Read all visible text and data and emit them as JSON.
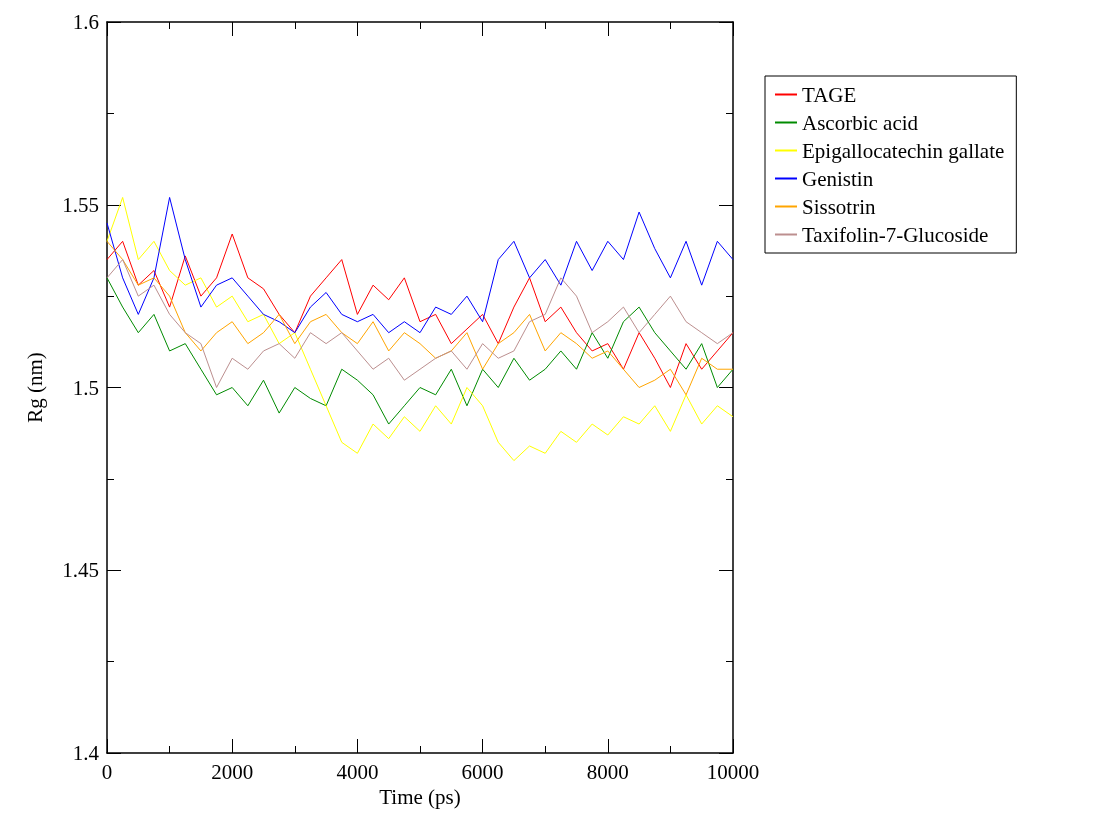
{
  "chart_data": {
    "type": "line",
    "xlabel": "Time (ps)",
    "ylabel": "Rg (nm)",
    "x": [
      0,
      250,
      500,
      750,
      1000,
      1250,
      1500,
      1750,
      2000,
      2250,
      2500,
      2750,
      3000,
      3250,
      3500,
      3750,
      4000,
      4250,
      4500,
      4750,
      5000,
      5250,
      5500,
      5750,
      6000,
      6250,
      6500,
      6750,
      7000,
      7250,
      7500,
      7750,
      8000,
      8250,
      8500,
      8750,
      9000,
      9250,
      9500,
      9750,
      10000
    ],
    "series": [
      {
        "name": "TAGE",
        "color": "#ff0000",
        "values": [
          1.535,
          1.54,
          1.528,
          1.532,
          1.522,
          1.536,
          1.525,
          1.53,
          1.542,
          1.53,
          1.527,
          1.52,
          1.515,
          1.525,
          1.53,
          1.535,
          1.52,
          1.528,
          1.524,
          1.53,
          1.518,
          1.52,
          1.512,
          1.516,
          1.52,
          1.512,
          1.522,
          1.53,
          1.518,
          1.522,
          1.515,
          1.51,
          1.512,
          1.505,
          1.515,
          1.508,
          1.5,
          1.512,
          1.505,
          1.51,
          1.515
        ]
      },
      {
        "name": "Ascorbic acid",
        "color": "#008b00",
        "values": [
          1.53,
          1.522,
          1.515,
          1.52,
          1.51,
          1.512,
          1.505,
          1.498,
          1.5,
          1.495,
          1.502,
          1.493,
          1.5,
          1.497,
          1.495,
          1.505,
          1.502,
          1.498,
          1.49,
          1.495,
          1.5,
          1.498,
          1.505,
          1.495,
          1.505,
          1.5,
          1.508,
          1.502,
          1.505,
          1.51,
          1.505,
          1.515,
          1.508,
          1.518,
          1.522,
          1.515,
          1.51,
          1.505,
          1.512,
          1.5,
          1.505
        ]
      },
      {
        "name": "Epigallocatechin gallate",
        "color": "#ffff00",
        "values": [
          1.54,
          1.552,
          1.535,
          1.54,
          1.532,
          1.528,
          1.53,
          1.522,
          1.525,
          1.518,
          1.52,
          1.512,
          1.515,
          1.505,
          1.495,
          1.485,
          1.482,
          1.49,
          1.486,
          1.492,
          1.488,
          1.495,
          1.49,
          1.5,
          1.495,
          1.485,
          1.48,
          1.484,
          1.482,
          1.488,
          1.485,
          1.49,
          1.487,
          1.492,
          1.49,
          1.495,
          1.488,
          1.498,
          1.49,
          1.495,
          1.492
        ]
      },
      {
        "name": "Genistin",
        "color": "#0000ff",
        "values": [
          1.545,
          1.53,
          1.52,
          1.53,
          1.552,
          1.535,
          1.522,
          1.528,
          1.53,
          1.525,
          1.52,
          1.518,
          1.515,
          1.522,
          1.526,
          1.52,
          1.518,
          1.52,
          1.515,
          1.518,
          1.515,
          1.522,
          1.52,
          1.525,
          1.518,
          1.535,
          1.54,
          1.53,
          1.535,
          1.528,
          1.54,
          1.532,
          1.54,
          1.535,
          1.548,
          1.538,
          1.53,
          1.54,
          1.528,
          1.54,
          1.535
        ]
      },
      {
        "name": "Sissotrin",
        "color": "#ffa500",
        "values": [
          1.54,
          1.535,
          1.528,
          1.53,
          1.525,
          1.515,
          1.51,
          1.515,
          1.518,
          1.512,
          1.515,
          1.52,
          1.512,
          1.518,
          1.52,
          1.515,
          1.512,
          1.518,
          1.51,
          1.515,
          1.512,
          1.508,
          1.51,
          1.515,
          1.505,
          1.512,
          1.515,
          1.52,
          1.51,
          1.515,
          1.512,
          1.508,
          1.51,
          1.505,
          1.5,
          1.502,
          1.505,
          1.498,
          1.508,
          1.505,
          1.505
        ]
      },
      {
        "name": "Taxifolin-7-Glucoside",
        "color": "#bc8f8f",
        "values": [
          1.53,
          1.535,
          1.525,
          1.528,
          1.52,
          1.515,
          1.512,
          1.5,
          1.508,
          1.505,
          1.51,
          1.512,
          1.508,
          1.515,
          1.512,
          1.515,
          1.51,
          1.505,
          1.508,
          1.502,
          1.505,
          1.508,
          1.51,
          1.505,
          1.512,
          1.508,
          1.51,
          1.518,
          1.52,
          1.53,
          1.525,
          1.515,
          1.518,
          1.522,
          1.515,
          1.52,
          1.525,
          1.518,
          1.515,
          1.512,
          1.515
        ]
      }
    ],
    "xlim": [
      0,
      10000
    ],
    "xticks": [
      0,
      2000,
      4000,
      6000,
      8000,
      10000
    ],
    "ylim": [
      1.4,
      1.6
    ],
    "yticks": [
      1.4,
      1.45,
      1.5,
      1.55,
      1.6
    ],
    "grid": false,
    "legend": "top right",
    "marker": "none",
    "line_style": "solid"
  }
}
